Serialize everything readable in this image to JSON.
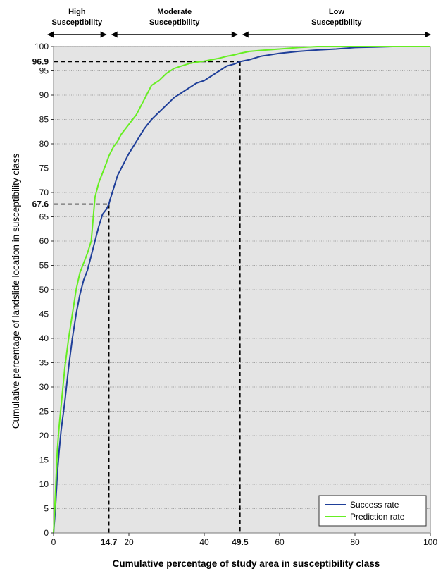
{
  "chart_data": {
    "type": "line",
    "xlabel": "Cumulative percentage of study area in susceptibility class",
    "ylabel": "Cumulative percentage of landslide location in susceptibility class",
    "xlim": [
      0,
      100
    ],
    "ylim": [
      0,
      100
    ],
    "x_ticks": [
      "0",
      "20",
      "40",
      "60",
      "80",
      "100"
    ],
    "x_ticks_bold": [
      "14.7",
      "49.5"
    ],
    "y_ticks": [
      "0",
      "5",
      "10",
      "15",
      "20",
      "25",
      "30",
      "35",
      "40",
      "45",
      "50",
      "55",
      "60",
      "65",
      "70",
      "75",
      "80",
      "85",
      "90",
      "95",
      "100"
    ],
    "y_ticks_bold": [
      "67.6",
      "96.9"
    ],
    "grid": "horizontal dotted",
    "legend_position": "bottom-right",
    "zones": [
      {
        "label_line1": "High",
        "label_line2": "Susceptibility",
        "x_start": 0,
        "x_end": 14.7
      },
      {
        "label_line1": "Moderate",
        "label_line2": "Susceptibility",
        "x_start": 14.7,
        "x_end": 49.5
      },
      {
        "label_line1": "Low",
        "label_line2": "Susceptibility",
        "x_start": 49.5,
        "x_end": 100
      }
    ],
    "reference_lines": [
      {
        "x": 14.7,
        "y": 67.6
      },
      {
        "x": 49.5,
        "y": 96.9
      }
    ],
    "series": [
      {
        "name": "Success rate",
        "color": "#1f3f99",
        "x": [
          0,
          0.5,
          1,
          1.5,
          2,
          3,
          4,
          5,
          6,
          7,
          8,
          9,
          10,
          11,
          12,
          13,
          14,
          14.7,
          15,
          16,
          17,
          18,
          20,
          22,
          24,
          26,
          28,
          30,
          32,
          34,
          36,
          38,
          40,
          42,
          44,
          46,
          48,
          49.5,
          52,
          55,
          60,
          65,
          70,
          75,
          80,
          85,
          90,
          95,
          100
        ],
        "values": [
          0,
          5,
          12,
          17,
          21,
          27,
          34,
          40,
          45,
          49,
          52,
          54,
          57,
          60,
          63,
          65.5,
          66.5,
          67.6,
          68.5,
          71,
          73.5,
          75,
          78,
          80.5,
          83,
          85,
          86.5,
          88,
          89.5,
          90.5,
          91.5,
          92.5,
          93,
          94,
          95,
          96,
          96.4,
          96.9,
          97.3,
          98,
          98.6,
          99,
          99.3,
          99.5,
          99.8,
          99.9,
          100,
          100,
          100
        ]
      },
      {
        "name": "Prediction rate",
        "color": "#66ee22",
        "x": [
          0,
          0.5,
          1,
          1.5,
          2,
          3,
          4,
          5,
          6,
          7,
          8,
          9,
          10,
          11,
          12,
          13,
          14,
          14.7,
          15,
          16,
          17,
          18,
          20,
          22,
          24,
          26,
          28,
          30,
          32,
          34,
          36,
          38,
          40,
          42,
          44,
          46,
          48,
          49.5,
          52,
          55,
          60,
          65,
          70,
          75,
          80,
          85,
          90,
          95,
          100
        ],
        "values": [
          0,
          8,
          17,
          22,
          26,
          34,
          40,
          45,
          50,
          53.5,
          55.5,
          57.5,
          60,
          69,
          72,
          74,
          76,
          77.5,
          78,
          79.5,
          80.5,
          82,
          84,
          86,
          89,
          92,
          93,
          94.5,
          95.5,
          96,
          96.5,
          96.8,
          97,
          97.3,
          97.6,
          98,
          98.3,
          98.6,
          99,
          99.2,
          99.5,
          99.8,
          100,
          100,
          100,
          100,
          100,
          100,
          100
        ]
      }
    ]
  }
}
